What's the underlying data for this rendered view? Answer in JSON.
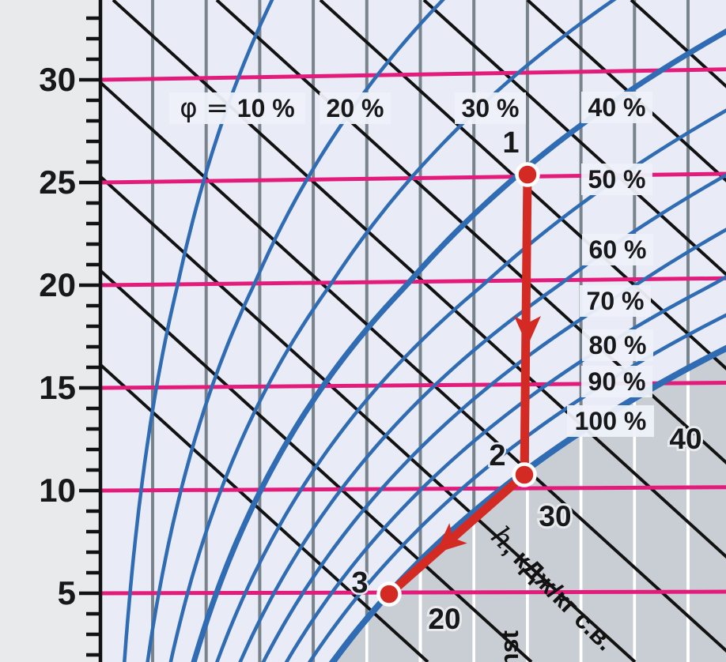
{
  "chart_data": {
    "type": "line",
    "diagram": "psychrometric h-d (Mollier) diagram fragment with process path",
    "temperature_axis": {
      "side": "left",
      "major_tick_labels": [
        "30",
        "25",
        "20",
        "15",
        "10",
        "5"
      ],
      "major_tick_values": [
        30,
        25,
        20,
        15,
        10,
        5
      ],
      "minor_step": 1
    },
    "relative_humidity_curves": {
      "symbol_prefix": "φ = ",
      "values_percent": [
        10,
        20,
        30,
        40,
        50,
        60,
        70,
        80,
        90,
        100
      ],
      "labels": [
        "10 %",
        "20 %",
        "30 %",
        "40 %",
        "50 %",
        "60 %",
        "70 %",
        "80 %",
        "90 %",
        "100 %"
      ],
      "thick_values": [
        40,
        100
      ]
    },
    "isotherm_lines_celsius": [
      30,
      25,
      20,
      15,
      10,
      5
    ],
    "enthalpy_lines": {
      "labels": [
        "20",
        "30",
        "40"
      ],
      "axis_label_h": "h",
      "axis_label_units": ", кДж/кг с.в."
    },
    "const_line_label_fragment": "nst",
    "process": {
      "point_labels": [
        "1",
        "2",
        "3"
      ],
      "points": [
        {
          "label": "1",
          "t_c": 25.5,
          "phi_percent": 40
        },
        {
          "label": "2",
          "t_c": 11,
          "phi_percent": 100
        },
        {
          "label": "3",
          "t_c": 5,
          "phi_percent": 100
        }
      ],
      "arrow_path": [
        "1",
        "2",
        "3"
      ]
    }
  },
  "colors": {
    "margin_bg": "#e8eaeb",
    "plot_bg": "#e9ecf6",
    "gray_region": "#c9ced4",
    "pink_isotherm": "#e31c7c",
    "blue_curve": "#2f6cb4",
    "red_process": "#d32b24",
    "black_line": "#121212",
    "gray_vline": "#78838c",
    "white_vline": "#ffffff",
    "label_box": "#eef1f9",
    "text": "#17181a"
  }
}
